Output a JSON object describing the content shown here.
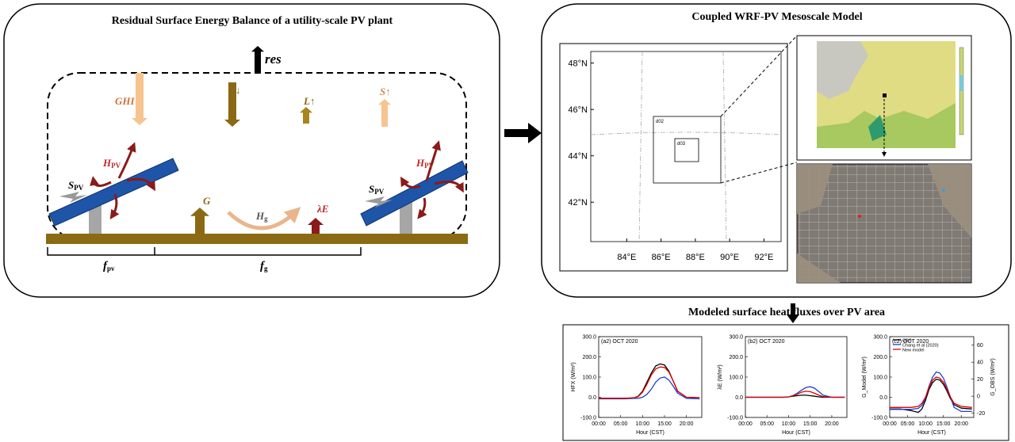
{
  "left_panel": {
    "title": "Residual Surface Energy Balance of a utility-scale PV plant",
    "res": "res",
    "ghi": "GHI",
    "l_down": "L↓",
    "l_up": "L↑",
    "s_up": "S↑",
    "h_pv": {
      "main": "H",
      "sub": "PV"
    },
    "s_pv": {
      "main": "S",
      "sub": "PV"
    },
    "g": "G",
    "h_g": {
      "main": "H",
      "sub": "g"
    },
    "lambda_e": "λE",
    "f_pv": {
      "main": "f",
      "sub": "pv"
    },
    "f_g": {
      "main": "f",
      "sub": "g"
    }
  },
  "right_panel": {
    "title": "Coupled WRF-PV Mesoscale Model",
    "map": {
      "latlim": [
        40.3,
        48.5
      ],
      "lonlim": [
        81.9,
        93.0
      ],
      "lat_ticks": [
        {
          "value": 48,
          "label": "48°N"
        },
        {
          "value": 46,
          "label": "46°N"
        },
        {
          "value": 44,
          "label": "44°N"
        },
        {
          "value": 42,
          "label": "42°N"
        }
      ],
      "lon_ticks": [
        {
          "value": 84,
          "label": "84°E"
        },
        {
          "value": 86,
          "label": "86°E"
        },
        {
          "value": 88,
          "label": "88°E"
        },
        {
          "value": 90,
          "label": "90°E"
        },
        {
          "value": 92,
          "label": "92°E"
        }
      ],
      "domains": [
        "d02",
        "d03"
      ]
    }
  },
  "flux_section": {
    "title": "Modeled surface heat  fluxes over PV area"
  },
  "chart_data": [
    {
      "type": "line",
      "title": "(a2) OCT 2020",
      "x_label": "Hour (CST)",
      "y_label": "HFX (W/m²)",
      "x": [
        0,
        3,
        6,
        8,
        9,
        10,
        11,
        12,
        13,
        14,
        15,
        16,
        17,
        18,
        20,
        23
      ],
      "xlim": [
        0,
        23.5
      ],
      "xticks": [
        {
          "value": 0,
          "label": "00:00"
        },
        {
          "value": 5,
          "label": "05:00"
        },
        {
          "value": 10,
          "label": "10:00"
        },
        {
          "value": 15,
          "label": "15:00"
        },
        {
          "value": 20,
          "label": "20:00"
        }
      ],
      "ylim": [
        -100,
        300
      ],
      "yticks": [
        {
          "value": 300,
          "label": "300.0"
        },
        {
          "value": 200,
          "label": "200.0"
        },
        {
          "value": 100,
          "label": "100.0"
        },
        {
          "value": 0,
          "label": "0.0"
        },
        {
          "value": -100,
          "label": "-100.0"
        }
      ],
      "series": [
        {
          "color": "#000000",
          "values": [
            -5,
            -5,
            -5,
            -3,
            5,
            30,
            75,
            120,
            155,
            165,
            160,
            130,
            80,
            30,
            0,
            -2
          ]
        },
        {
          "color": "#1f3fd0",
          "values": [
            -8,
            -8,
            -8,
            -6,
            -5,
            0,
            15,
            40,
            75,
            95,
            100,
            85,
            55,
            20,
            -5,
            -8
          ]
        },
        {
          "color": "#e00000",
          "values": [
            -5,
            -5,
            -5,
            -3,
            3,
            25,
            65,
            110,
            140,
            150,
            148,
            125,
            80,
            30,
            0,
            -2
          ]
        }
      ]
    },
    {
      "type": "line",
      "title": "(b2) OCT 2020",
      "x_label": "Hour (CST)",
      "y_label": "λE (W/m²)",
      "x": [
        0,
        3,
        6,
        8,
        9,
        10,
        11,
        12,
        13,
        14,
        15,
        16,
        17,
        18,
        20,
        23
      ],
      "xlim": [
        0,
        23.5
      ],
      "xticks": [
        {
          "value": 0,
          "label": "00:00"
        },
        {
          "value": 5,
          "label": "05:00"
        },
        {
          "value": 10,
          "label": "10:00"
        },
        {
          "value": 15,
          "label": "15:00"
        },
        {
          "value": 20,
          "label": "20:00"
        }
      ],
      "ylim": [
        -100,
        300
      ],
      "yticks": [
        {
          "value": 300,
          "label": "300.0"
        },
        {
          "value": 200,
          "label": "200.0"
        },
        {
          "value": 100,
          "label": "100.0"
        },
        {
          "value": 0,
          "label": "0.0"
        },
        {
          "value": -100,
          "label": "-100.0"
        }
      ],
      "series": [
        {
          "color": "#000000",
          "values": [
            0,
            0,
            0,
            0,
            0,
            2,
            5,
            8,
            10,
            10,
            8,
            5,
            2,
            0,
            0,
            0
          ]
        },
        {
          "color": "#1f3fd0",
          "values": [
            0,
            0,
            0,
            0,
            0,
            2,
            8,
            20,
            35,
            48,
            52,
            45,
            28,
            10,
            0,
            0
          ]
        },
        {
          "color": "#e00000",
          "values": [
            0,
            0,
            0,
            0,
            0,
            2,
            8,
            15,
            25,
            30,
            28,
            20,
            10,
            3,
            0,
            0
          ]
        }
      ]
    },
    {
      "type": "line",
      "title": "(c2) OCT 2020",
      "x_label": "Hour (CST)",
      "y_label": "G_Model (W/m²)",
      "y2_label": "G_OBS (W/m²)",
      "x": [
        0,
        3,
        6,
        8,
        9,
        10,
        11,
        12,
        13,
        14,
        15,
        16,
        17,
        18,
        20,
        23
      ],
      "xlim": [
        0,
        23.5
      ],
      "xticks": [
        {
          "value": 0,
          "label": "00:00"
        },
        {
          "value": 5,
          "label": "05:00"
        },
        {
          "value": 10,
          "label": "10:00"
        },
        {
          "value": 15,
          "label": "15:00"
        },
        {
          "value": 20,
          "label": "20:00"
        }
      ],
      "ylim": [
        -100,
        300
      ],
      "yticks": [
        {
          "value": 300,
          "label": "300.0"
        },
        {
          "value": 200,
          "label": "200.0"
        },
        {
          "value": 100,
          "label": "100.0"
        },
        {
          "value": 0,
          "label": "0.0"
        },
        {
          "value": -100,
          "label": "-100.0"
        }
      ],
      "y2lim": [
        -25,
        70
      ],
      "y2ticks": [
        60,
        40,
        20,
        0,
        -20
      ],
      "legend": "upper left",
      "series": [
        {
          "name": "OBS",
          "color": "#000000",
          "axis": "y2",
          "values": [
            -15,
            -15,
            -17,
            -19,
            -15,
            -5,
            8,
            16,
            20,
            19,
            14,
            6,
            -3,
            -10,
            -14,
            -15
          ]
        },
        {
          "name": "Chang et al (2020)",
          "color": "#1f3fd0",
          "values": [
            -60,
            -60,
            -60,
            -55,
            -40,
            -5,
            55,
            100,
            125,
            120,
            95,
            50,
            0,
            -50,
            -70,
            -70
          ]
        },
        {
          "name": "New model",
          "color": "#e00000",
          "values": [
            -50,
            -50,
            -50,
            -45,
            -30,
            0,
            50,
            85,
            100,
            95,
            75,
            40,
            0,
            -30,
            -45,
            -50
          ]
        }
      ]
    }
  ]
}
